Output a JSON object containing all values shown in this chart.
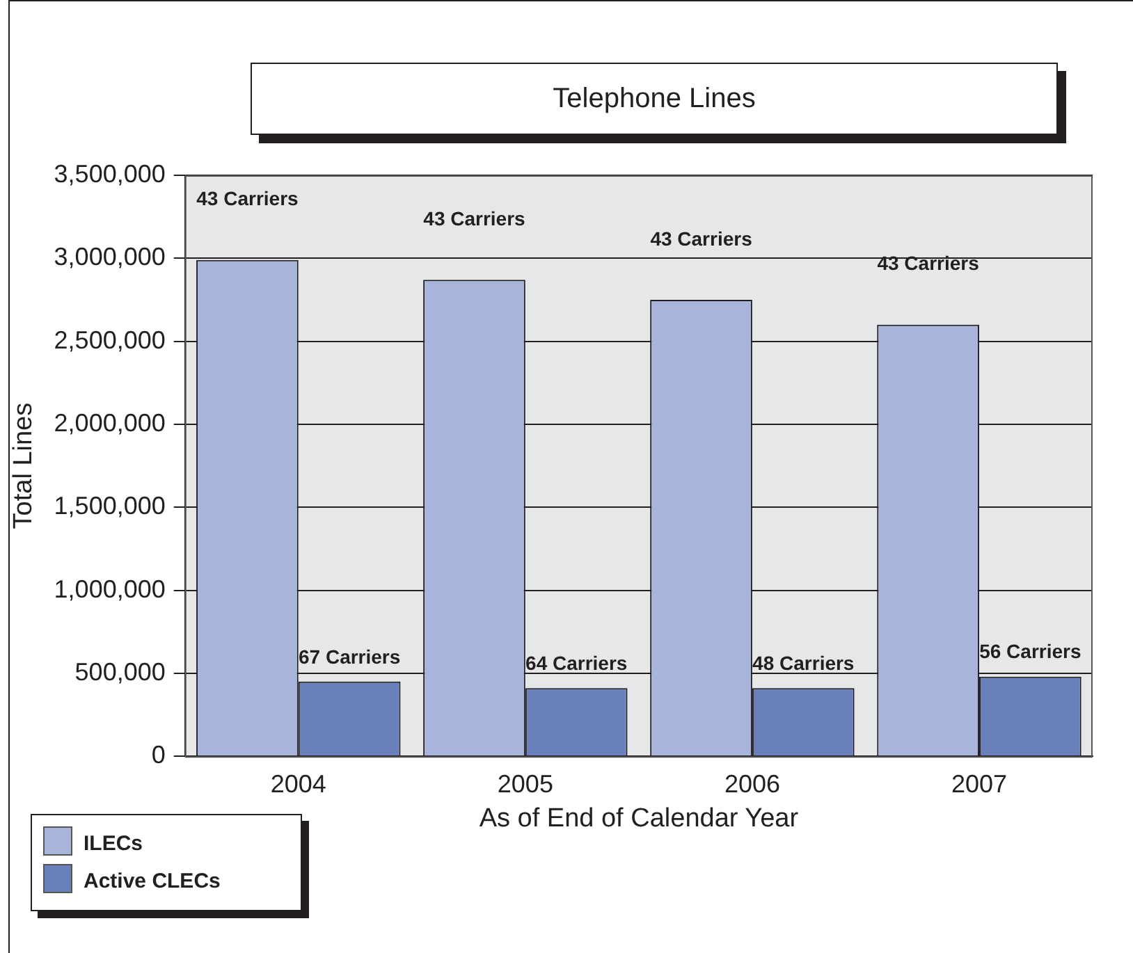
{
  "chart_data": {
    "type": "bar",
    "title": "Telephone Lines",
    "xlabel": "As of End of Calendar Year",
    "ylabel": "Total Lines",
    "categories": [
      "2004",
      "2005",
      "2006",
      "2007"
    ],
    "series": [
      {
        "name": "ILECs",
        "color": "#a8b4da",
        "values": [
          2990000,
          2870000,
          2750000,
          2600000
        ]
      },
      {
        "name": "Active CLECs",
        "color": "#6a80ba",
        "values": [
          450000,
          410000,
          410000,
          480000
        ]
      }
    ],
    "annotations": [
      "43 Carriers",
      "43 Carriers",
      "43 Carriers",
      "43 Carriers",
      "67 Carriers",
      "64 Carriers",
      "48 Carriers",
      "56 Carriers"
    ],
    "ylim": [
      0,
      3500000
    ],
    "yticks": [
      0,
      {
        "value": 500000,
        "label": "500,000"
      },
      {
        "value": 1000000,
        "label": "1,000,000"
      },
      {
        "value": 1500000,
        "label": "1,500,000"
      },
      {
        "value": 2000000,
        "label": "2,000,000"
      },
      {
        "value": 2500000,
        "label": "2,500,000"
      },
      {
        "value": 3000000,
        "label": "3,000,000"
      },
      {
        "value": 3500000,
        "label": "3,500,000"
      }
    ],
    "grid": "y",
    "legend": "bottom left"
  }
}
